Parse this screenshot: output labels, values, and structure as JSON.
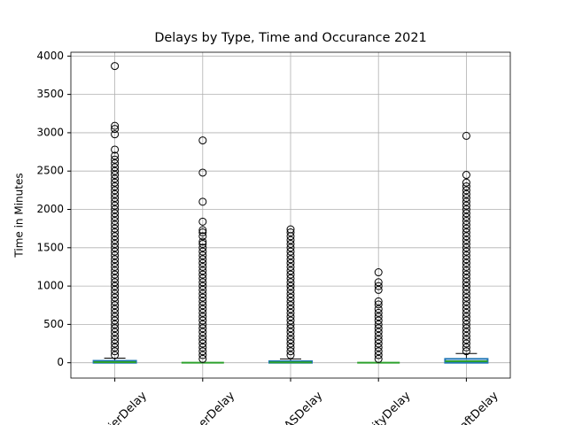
{
  "chart_data": {
    "type": "box",
    "title": "Delays by Type, Time and Occurance 2021",
    "ylabel": "Time in Minutes",
    "categories": [
      "ierDelay",
      "erDelay",
      "ASDelay",
      "ityDelay",
      "aftDelay"
    ],
    "box_color": "#1f77b4",
    "median_color": "#2ca02c",
    "whisker_color": "#000000",
    "ylim": [
      -200,
      4050
    ],
    "yticks": [
      0,
      500,
      1000,
      1500,
      2000,
      2500,
      3000,
      3500,
      4000
    ],
    "grid": true,
    "boxes": [
      {
        "q1": 0,
        "median": 8,
        "q3": 25,
        "whislo": 0,
        "whishi": 60,
        "fliers": [
          100,
          150,
          200,
          250,
          300,
          350,
          400,
          450,
          500,
          550,
          600,
          650,
          700,
          750,
          800,
          850,
          900,
          950,
          1000,
          1050,
          1100,
          1150,
          1200,
          1250,
          1300,
          1350,
          1400,
          1450,
          1500,
          1550,
          1600,
          1650,
          1700,
          1750,
          1800,
          1850,
          1900,
          1950,
          2000,
          2050,
          2100,
          2150,
          2200,
          2250,
          2300,
          2350,
          2400,
          2450,
          2500,
          2550,
          2600,
          2650,
          2700,
          2780,
          2980,
          3050,
          3090,
          3870
        ]
      },
      {
        "q1": 0,
        "median": 0,
        "q3": 0,
        "whislo": 0,
        "whishi": 0,
        "fliers": [
          50,
          100,
          150,
          200,
          250,
          300,
          350,
          400,
          450,
          500,
          550,
          600,
          650,
          700,
          750,
          800,
          850,
          900,
          950,
          1000,
          1050,
          1100,
          1150,
          1200,
          1250,
          1300,
          1350,
          1400,
          1450,
          1500,
          1550,
          1580,
          1650,
          1700,
          1730,
          1840,
          2100,
          2480,
          2900
        ]
      },
      {
        "q1": 0,
        "median": 5,
        "q3": 20,
        "whislo": 0,
        "whishi": 50,
        "fliers": [
          100,
          150,
          200,
          250,
          300,
          350,
          400,
          450,
          500,
          550,
          600,
          650,
          700,
          750,
          800,
          850,
          900,
          950,
          1000,
          1050,
          1100,
          1150,
          1200,
          1250,
          1300,
          1350,
          1400,
          1450,
          1500,
          1550,
          1600,
          1650,
          1700,
          1740
        ]
      },
      {
        "q1": 0,
        "median": 0,
        "q3": 0,
        "whislo": 0,
        "whishi": 0,
        "fliers": [
          50,
          100,
          150,
          200,
          250,
          300,
          350,
          400,
          450,
          500,
          550,
          600,
          650,
          700,
          760,
          800,
          950,
          1000,
          1050,
          1180
        ]
      },
      {
        "q1": 0,
        "median": 20,
        "q3": 50,
        "whislo": 0,
        "whishi": 120,
        "fliers": [
          150,
          200,
          250,
          300,
          350,
          400,
          450,
          500,
          550,
          600,
          650,
          700,
          750,
          800,
          850,
          900,
          950,
          1000,
          1050,
          1100,
          1150,
          1200,
          1250,
          1300,
          1350,
          1400,
          1450,
          1500,
          1550,
          1600,
          1650,
          1700,
          1750,
          1800,
          1850,
          1900,
          1950,
          2000,
          2050,
          2100,
          2150,
          2200,
          2250,
          2300,
          2350,
          2450,
          2960
        ]
      }
    ]
  }
}
